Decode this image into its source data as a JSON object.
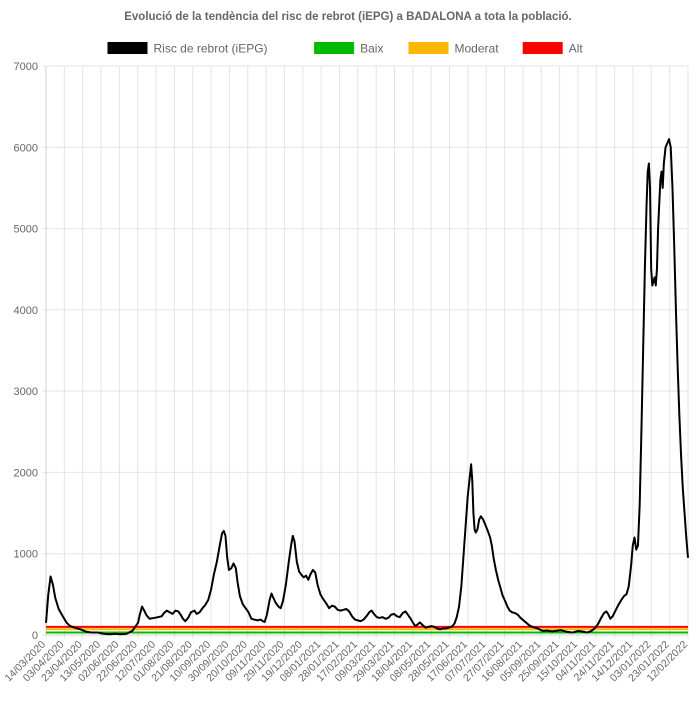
{
  "chart_data": {
    "type": "line",
    "title": "Evolució de la tendència del risc de rebrot (iEPG) a BADALONA a tota la població.",
    "xlabel": "",
    "ylabel": "",
    "ylim": [
      0,
      7000
    ],
    "yticks": [
      0,
      1000,
      2000,
      3000,
      4000,
      5000,
      6000,
      7000
    ],
    "grid": true,
    "legend_position": "top",
    "categories": [
      "14/03/2020",
      "03/04/2020",
      "23/04/2020",
      "13/05/2020",
      "02/06/2020",
      "22/06/2020",
      "12/07/2020",
      "01/08/2020",
      "21/08/2020",
      "10/09/2020",
      "30/09/2020",
      "20/10/2020",
      "09/11/2020",
      "29/11/2020",
      "19/12/2020",
      "08/01/2021",
      "28/01/2021",
      "17/02/2021",
      "09/03/2021",
      "29/03/2021",
      "18/04/2021",
      "08/05/2021",
      "28/05/2021",
      "17/06/2021",
      "07/07/2021",
      "27/07/2021",
      "16/08/2021",
      "05/09/2021",
      "25/09/2021",
      "15/10/2021",
      "04/11/2021",
      "24/11/2021",
      "14/12/2021",
      "03/01/2022",
      "23/01/2022",
      "12/02/2022"
    ],
    "series": [
      {
        "name": "Risc de rebrot (iEPG)",
        "color": "#000000",
        "values": [
          [
            0,
            150
          ],
          [
            4,
            500
          ],
          [
            8,
            720
          ],
          [
            12,
            620
          ],
          [
            16,
            460
          ],
          [
            22,
            320
          ],
          [
            30,
            220
          ],
          [
            36,
            150
          ],
          [
            42,
            110
          ],
          [
            50,
            90
          ],
          [
            60,
            70
          ],
          [
            70,
            40
          ],
          [
            80,
            30
          ],
          [
            90,
            30
          ],
          [
            100,
            15
          ],
          [
            110,
            10
          ],
          [
            120,
            15
          ],
          [
            130,
            10
          ],
          [
            140,
            15
          ],
          [
            150,
            50
          ],
          [
            160,
            150
          ],
          [
            163,
            250
          ],
          [
            167,
            350
          ],
          [
            170,
            310
          ],
          [
            175,
            240
          ],
          [
            180,
            200
          ],
          [
            188,
            210
          ],
          [
            195,
            220
          ],
          [
            201,
            230
          ],
          [
            205,
            270
          ],
          [
            210,
            300
          ],
          [
            215,
            280
          ],
          [
            220,
            260
          ],
          [
            225,
            300
          ],
          [
            230,
            290
          ],
          [
            235,
            240
          ],
          [
            238,
            200
          ],
          [
            242,
            170
          ],
          [
            247,
            210
          ],
          [
            252,
            280
          ],
          [
            258,
            300
          ],
          [
            262,
            260
          ],
          [
            267,
            280
          ],
          [
            272,
            330
          ],
          [
            277,
            370
          ],
          [
            282,
            430
          ],
          [
            287,
            560
          ],
          [
            292,
            750
          ],
          [
            297,
            900
          ],
          [
            302,
            1100
          ],
          [
            306,
            1250
          ],
          [
            309,
            1280
          ],
          [
            312,
            1220
          ],
          [
            315,
            950
          ],
          [
            318,
            800
          ],
          [
            322,
            820
          ],
          [
            326,
            880
          ],
          [
            330,
            820
          ],
          [
            333,
            650
          ],
          [
            337,
            480
          ],
          [
            342,
            380
          ],
          [
            347,
            330
          ],
          [
            352,
            280
          ],
          [
            357,
            200
          ],
          [
            362,
            190
          ],
          [
            368,
            180
          ],
          [
            373,
            190
          ],
          [
            377,
            170
          ],
          [
            380,
            160
          ],
          [
            384,
            250
          ],
          [
            389,
            440
          ],
          [
            392,
            510
          ],
          [
            395,
            460
          ],
          [
            399,
            400
          ],
          [
            404,
            350
          ],
          [
            408,
            330
          ],
          [
            412,
            420
          ],
          [
            417,
            620
          ],
          [
            422,
            900
          ],
          [
            426,
            1100
          ],
          [
            429,
            1220
          ],
          [
            432,
            1150
          ],
          [
            436,
            900
          ],
          [
            440,
            780
          ],
          [
            444,
            740
          ],
          [
            448,
            710
          ],
          [
            452,
            730
          ],
          [
            456,
            680
          ],
          [
            460,
            750
          ],
          [
            464,
            800
          ],
          [
            468,
            770
          ],
          [
            472,
            620
          ],
          [
            477,
            500
          ],
          [
            482,
            440
          ],
          [
            487,
            390
          ],
          [
            492,
            330
          ],
          [
            497,
            360
          ],
          [
            502,
            350
          ],
          [
            507,
            310
          ],
          [
            512,
            300
          ],
          [
            517,
            310
          ],
          [
            522,
            320
          ],
          [
            527,
            290
          ],
          [
            532,
            230
          ],
          [
            537,
            190
          ],
          [
            542,
            180
          ],
          [
            547,
            170
          ],
          [
            552,
            190
          ],
          [
            557,
            230
          ],
          [
            562,
            280
          ],
          [
            566,
            300
          ],
          [
            570,
            260
          ],
          [
            575,
            220
          ],
          [
            580,
            210
          ],
          [
            585,
            220
          ],
          [
            590,
            200
          ],
          [
            595,
            210
          ],
          [
            600,
            250
          ],
          [
            605,
            260
          ],
          [
            610,
            230
          ],
          [
            615,
            220
          ],
          [
            620,
            270
          ],
          [
            625,
            290
          ],
          [
            629,
            250
          ],
          [
            634,
            200
          ],
          [
            638,
            150
          ],
          [
            642,
            110
          ],
          [
            646,
            130
          ],
          [
            650,
            155
          ],
          [
            655,
            120
          ],
          [
            660,
            90
          ],
          [
            665,
            100
          ],
          [
            670,
            110
          ],
          [
            675,
            100
          ],
          [
            680,
            80
          ],
          [
            685,
            70
          ],
          [
            690,
            80
          ],
          [
            695,
            80
          ],
          [
            700,
            90
          ],
          [
            705,
            100
          ],
          [
            710,
            140
          ],
          [
            714,
            220
          ],
          [
            718,
            350
          ],
          [
            722,
            600
          ],
          [
            726,
            1000
          ],
          [
            730,
            1400
          ],
          [
            733,
            1700
          ],
          [
            736,
            1900
          ],
          [
            739,
            2100
          ],
          [
            741,
            1900
          ],
          [
            743,
            1500
          ],
          [
            745,
            1300
          ],
          [
            747,
            1260
          ],
          [
            750,
            1300
          ],
          [
            753,
            1420
          ],
          [
            756,
            1460
          ],
          [
            760,
            1420
          ],
          [
            764,
            1350
          ],
          [
            768,
            1280
          ],
          [
            772,
            1200
          ],
          [
            775,
            1100
          ],
          [
            778,
            950
          ],
          [
            782,
            800
          ],
          [
            786,
            680
          ],
          [
            790,
            580
          ],
          [
            794,
            480
          ],
          [
            798,
            420
          ],
          [
            802,
            350
          ],
          [
            806,
            300
          ],
          [
            810,
            280
          ],
          [
            815,
            270
          ],
          [
            820,
            250
          ],
          [
            825,
            210
          ],
          [
            830,
            180
          ],
          [
            835,
            150
          ],
          [
            840,
            120
          ],
          [
            845,
            100
          ],
          [
            850,
            90
          ],
          [
            855,
            80
          ],
          [
            860,
            60
          ],
          [
            865,
            50
          ],
          [
            870,
            55
          ],
          [
            875,
            50
          ],
          [
            880,
            45
          ],
          [
            885,
            50
          ],
          [
            890,
            55
          ],
          [
            895,
            60
          ],
          [
            900,
            50
          ],
          [
            905,
            40
          ],
          [
            910,
            35
          ],
          [
            915,
            30
          ],
          [
            920,
            40
          ],
          [
            925,
            50
          ],
          [
            930,
            45
          ],
          [
            935,
            40
          ],
          [
            940,
            30
          ],
          [
            945,
            40
          ],
          [
            950,
            60
          ],
          [
            955,
            90
          ],
          [
            960,
            140
          ],
          [
            965,
            210
          ],
          [
            970,
            270
          ],
          [
            974,
            290
          ],
          [
            977,
            260
          ],
          [
            981,
            200
          ],
          [
            985,
            230
          ],
          [
            990,
            300
          ],
          [
            995,
            370
          ],
          [
            1000,
            430
          ],
          [
            1005,
            480
          ],
          [
            1009,
            500
          ],
          [
            1013,
            600
          ],
          [
            1017,
            850
          ],
          [
            1020,
            1100
          ],
          [
            1023,
            1200
          ],
          [
            1026,
            1050
          ],
          [
            1029,
            1100
          ],
          [
            1032,
            1600
          ],
          [
            1035,
            2500
          ],
          [
            1038,
            3500
          ],
          [
            1041,
            4500
          ],
          [
            1044,
            5300
          ],
          [
            1046,
            5700
          ],
          [
            1048,
            5800
          ],
          [
            1050,
            5500
          ],
          [
            1052,
            4500
          ],
          [
            1054,
            4300
          ],
          [
            1056,
            4350
          ],
          [
            1058,
            4400
          ],
          [
            1060,
            4300
          ],
          [
            1062,
            4500
          ],
          [
            1064,
            5000
          ],
          [
            1066,
            5300
          ],
          [
            1068,
            5600
          ],
          [
            1070,
            5700
          ],
          [
            1072,
            5500
          ],
          [
            1074,
            5800
          ],
          [
            1077,
            6000
          ],
          [
            1080,
            6050
          ],
          [
            1083,
            6100
          ],
          [
            1086,
            6000
          ],
          [
            1089,
            5500
          ],
          [
            1092,
            4800
          ],
          [
            1095,
            4000
          ],
          [
            1098,
            3300
          ],
          [
            1101,
            2700
          ],
          [
            1104,
            2200
          ],
          [
            1107,
            1800
          ],
          [
            1110,
            1500
          ],
          [
            1113,
            1200
          ],
          [
            1116,
            950
          ]
        ]
      },
      {
        "name": "Baix",
        "color": "#00bb00",
        "values": [
          [
            0,
            30
          ],
          [
            1116,
            30
          ]
        ]
      },
      {
        "name": "Moderat",
        "color": "#ffb800",
        "values": [
          [
            0,
            70
          ],
          [
            1116,
            70
          ]
        ]
      },
      {
        "name": "Alt",
        "color": "#ff0000",
        "values": [
          [
            0,
            100
          ],
          [
            1116,
            100
          ]
        ]
      }
    ]
  }
}
